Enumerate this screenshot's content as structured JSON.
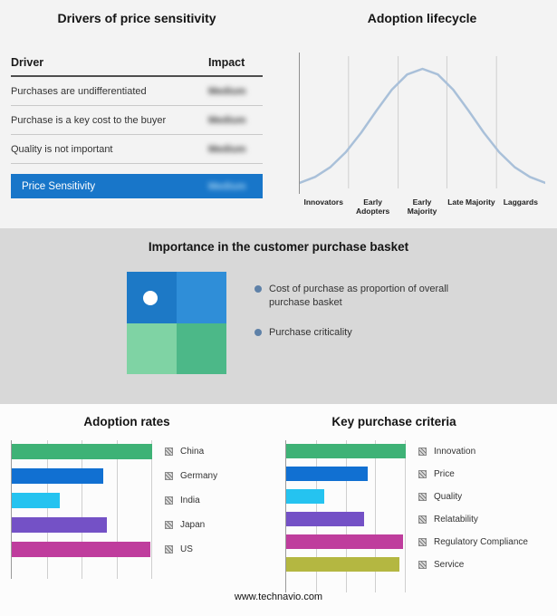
{
  "drivers": {
    "title": "Drivers of price sensitivity",
    "col_driver": "Driver",
    "col_impact": "Impact",
    "rows": [
      {
        "driver": "Purchases are undifferentiated",
        "impact": "Medium"
      },
      {
        "driver": "Purchase is a key cost to the buyer",
        "impact": "Medium"
      },
      {
        "driver": "Quality is not important",
        "impact": "Medium"
      }
    ],
    "highlight": {
      "label": "Price Sensitivity",
      "impact": "Medium"
    },
    "highlight_color": "#1876c9"
  },
  "basket": {
    "title": "Importance in the customer purchase basket",
    "legend": [
      "Cost of purchase as proportion of overall purchase basket",
      "Purchase criticality"
    ],
    "matrix_colors": [
      "#1d79c6",
      "#2f8ed8",
      "#7fd3a4",
      "#4cb888"
    ],
    "bullet_color": "#5e81a8"
  },
  "footer": {
    "url": "www.technavio.com"
  },
  "chart_data": [
    {
      "type": "bar",
      "title": "Adoption rates",
      "orientation": "horizontal",
      "categories": [
        "China",
        "Germany",
        "India",
        "Japan",
        "US"
      ],
      "values": [
        100,
        65,
        34,
        68,
        99
      ],
      "colors": [
        "#3eb276",
        "#1170d2",
        "#25c3f0",
        "#7451c6",
        "#bf3d9d"
      ],
      "xlim": [
        0,
        100
      ],
      "grid": true,
      "legend_position": "right"
    },
    {
      "type": "bar",
      "title": "Key purchase criteria",
      "orientation": "horizontal",
      "categories": [
        "Innovation",
        "Price",
        "Quality",
        "Relatability",
        "Regulatory Compliance",
        "Service"
      ],
      "values": [
        100,
        68,
        32,
        65,
        98,
        95
      ],
      "colors": [
        "#3eb276",
        "#1170d2",
        "#25c3f0",
        "#7451c6",
        "#bf3d9d",
        "#b4b741"
      ],
      "xlim": [
        0,
        100
      ],
      "grid": true,
      "legend_position": "right"
    },
    {
      "type": "area",
      "title": "Adoption lifecycle",
      "categories": [
        "Innovators",
        "Early Adopters",
        "Early Majority",
        "Late Majority",
        "Laggards"
      ],
      "description": "bell-shaped adoption lifecycle curve, peak over Early Majority",
      "curve_color": "#a9c0d9"
    }
  ]
}
